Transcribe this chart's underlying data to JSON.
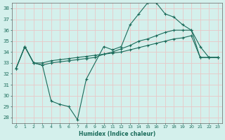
{
  "xlabel": "Humidex (Indice chaleur)",
  "background_color": "#d4f0ec",
  "grid_color": "#e8c8c8",
  "line_color": "#1a6b5a",
  "xlim": [
    -0.5,
    23.5
  ],
  "ylim": [
    27.5,
    38.5
  ],
  "ytick_values": [
    28,
    29,
    30,
    31,
    32,
    33,
    34,
    35,
    36,
    37,
    38
  ],
  "series": [
    {
      "x": [
        0,
        1,
        2,
        3,
        4,
        5,
        6,
        7,
        8,
        9,
        10,
        11,
        12,
        13,
        14,
        15,
        16,
        17,
        18,
        19,
        20,
        21,
        22,
        23
      ],
      "y": [
        32.5,
        34.5,
        33.0,
        33.0,
        33.2,
        33.3,
        33.4,
        33.5,
        33.6,
        33.7,
        33.8,
        33.9,
        34.0,
        34.2,
        34.4,
        34.6,
        34.8,
        35.0,
        35.2,
        35.3,
        35.5,
        33.5,
        33.5,
        33.5
      ]
    },
    {
      "x": [
        0,
        1,
        2,
        3,
        4,
        5,
        6,
        7,
        8,
        10,
        11,
        12,
        13,
        14,
        15,
        16,
        17,
        18,
        19,
        20,
        21,
        22,
        23
      ],
      "y": [
        32.5,
        34.5,
        33.0,
        32.8,
        29.5,
        29.2,
        29.0,
        27.8,
        31.5,
        34.5,
        34.2,
        34.5,
        36.5,
        37.5,
        38.5,
        38.5,
        37.5,
        37.2,
        36.5,
        36.0,
        34.5,
        33.5,
        33.5
      ]
    },
    {
      "x": [
        0,
        1,
        2,
        3,
        4,
        5,
        6,
        7,
        8,
        9,
        10,
        11,
        12,
        13,
        14,
        15,
        16,
        17,
        18,
        19,
        20,
        21,
        22,
        23
      ],
      "y": [
        32.5,
        34.5,
        33.0,
        32.8,
        33.0,
        33.1,
        33.2,
        33.3,
        33.4,
        33.5,
        33.8,
        34.0,
        34.3,
        34.6,
        35.0,
        35.2,
        35.5,
        35.8,
        36.0,
        36.0,
        36.0,
        33.5,
        33.5,
        33.5
      ]
    }
  ]
}
